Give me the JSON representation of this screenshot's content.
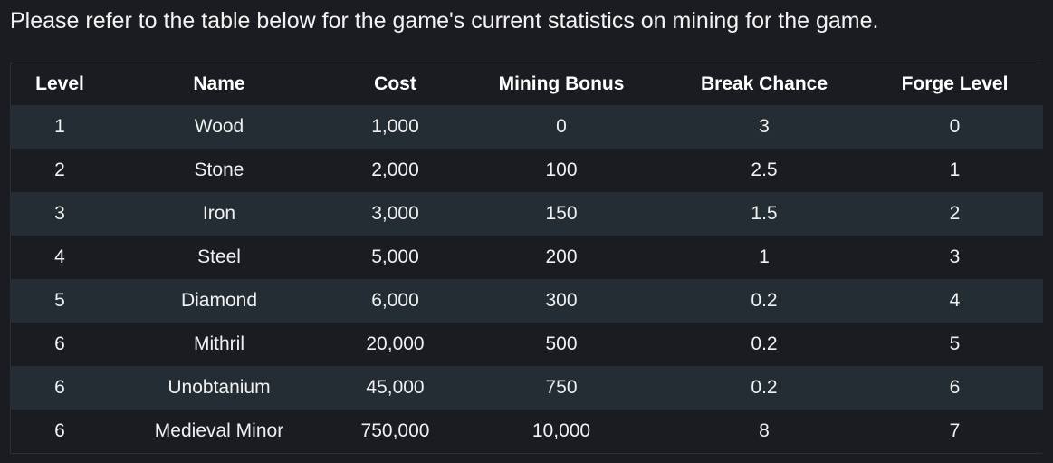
{
  "intro_text": "Please refer to the table below for the game's current statistics on mining for the game.",
  "table": {
    "headers": [
      "Level",
      "Name",
      "Cost",
      "Mining Bonus",
      "Break Chance",
      "Forge Level"
    ],
    "rows": [
      [
        "1",
        "Wood",
        "1,000",
        "0",
        "3",
        "0"
      ],
      [
        "2",
        "Stone",
        "2,000",
        "100",
        "2.5",
        "1"
      ],
      [
        "3",
        "Iron",
        "3,000",
        "150",
        "1.5",
        "2"
      ],
      [
        "4",
        "Steel",
        "5,000",
        "200",
        "1",
        "3"
      ],
      [
        "5",
        "Diamond",
        "6,000",
        "300",
        "0.2",
        "4"
      ],
      [
        "6",
        "Mithril",
        "20,000",
        "500",
        "0.2",
        "5"
      ],
      [
        "6",
        "Unobtanium",
        "45,000",
        "750",
        "0.2",
        "6"
      ],
      [
        "6",
        "Medieval Minor",
        "750,000",
        "10,000",
        "8",
        "7"
      ]
    ]
  },
  "colors": {
    "background": "#1b1c21",
    "stripe": "#232d33",
    "text": "#ffffff"
  }
}
